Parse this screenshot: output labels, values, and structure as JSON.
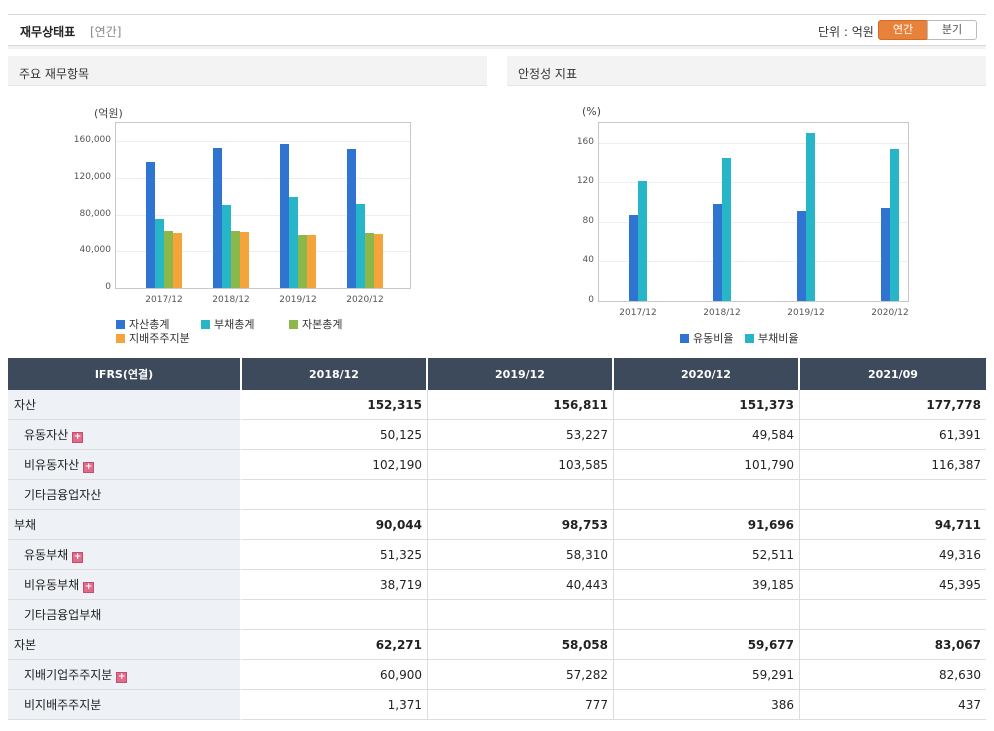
{
  "header": {
    "title": "재무상태표",
    "subtitle": "[연간]",
    "unit_label": "단위 : 억원",
    "period_options": [
      {
        "label": "연간",
        "active": true
      },
      {
        "label": "분기",
        "active": false
      }
    ]
  },
  "colors": {
    "asset": "#2f74d0",
    "liability": "#27b6c8",
    "equity": "#8cb84b",
    "controlling": "#f4a43a",
    "accent": "#e8823a",
    "table_header": "#3d4a5c"
  },
  "left_panel": {
    "title": "주요 재무항목",
    "unit": "(억원)"
  },
  "right_panel": {
    "title": "안정성 지표",
    "unit": "(%)"
  },
  "chart_data": [
    {
      "type": "bar",
      "title": "주요 재무항목",
      "ylabel": "(억원)",
      "categories": [
        "2017/12",
        "2018/12",
        "2019/12",
        "2020/12"
      ],
      "ylim": [
        0,
        180000
      ],
      "yticks": [
        0,
        40000,
        80000,
        120000,
        160000
      ],
      "ytick_labels": [
        "0",
        "40,000",
        "80,000",
        "120,000",
        "160,000"
      ],
      "legend": "bottom",
      "series": [
        {
          "name": "자산총계",
          "color": "#2f74d0",
          "values": [
            137000,
            152315,
            156811,
            151373
          ]
        },
        {
          "name": "부채총계",
          "color": "#27b6c8",
          "values": [
            75000,
            90044,
            98753,
            91696
          ]
        },
        {
          "name": "자본총계",
          "color": "#8cb84b",
          "values": [
            62000,
            62271,
            58058,
            59677
          ]
        },
        {
          "name": "지배주주지분",
          "color": "#f4a43a",
          "values": [
            60500,
            60900,
            57282,
            59291
          ]
        }
      ]
    },
    {
      "type": "bar",
      "title": "안정성 지표",
      "ylabel": "(%)",
      "categories": [
        "2017/12",
        "2018/12",
        "2019/12",
        "2020/12"
      ],
      "ylim": [
        0,
        180
      ],
      "yticks": [
        0,
        40,
        80,
        120,
        160
      ],
      "ytick_labels": [
        "0",
        "40",
        "80",
        "120",
        "160"
      ],
      "legend": "bottom",
      "series": [
        {
          "name": "유동비율",
          "color": "#2f74d0",
          "values": [
            87,
            97.7,
            91.3,
            94.4
          ]
        },
        {
          "name": "부채비율",
          "color": "#27b6c8",
          "values": [
            121,
            144.6,
            170.1,
            153.7
          ]
        }
      ]
    }
  ],
  "table": {
    "header_label": "IFRS(연결)",
    "columns": [
      "2018/12",
      "2019/12",
      "2020/12",
      "2021/09"
    ],
    "rows": [
      {
        "label": "자산",
        "level": "main",
        "expand": false,
        "values": [
          "152,315",
          "156,811",
          "151,373",
          "177,778"
        ]
      },
      {
        "label": "유동자산",
        "level": "sub",
        "expand": true,
        "values": [
          "50,125",
          "53,227",
          "49,584",
          "61,391"
        ]
      },
      {
        "label": "비유동자산",
        "level": "sub",
        "expand": true,
        "values": [
          "102,190",
          "103,585",
          "101,790",
          "116,387"
        ]
      },
      {
        "label": "기타금융업자산",
        "level": "sub",
        "expand": false,
        "values": [
          "",
          "",
          "",
          ""
        ]
      },
      {
        "label": "부채",
        "level": "main",
        "expand": false,
        "values": [
          "90,044",
          "98,753",
          "91,696",
          "94,711"
        ]
      },
      {
        "label": "유동부채",
        "level": "sub",
        "expand": true,
        "values": [
          "51,325",
          "58,310",
          "52,511",
          "49,316"
        ]
      },
      {
        "label": "비유동부채",
        "level": "sub",
        "expand": true,
        "values": [
          "38,719",
          "40,443",
          "39,185",
          "45,395"
        ]
      },
      {
        "label": "기타금융업부채",
        "level": "sub",
        "expand": false,
        "values": [
          "",
          "",
          "",
          ""
        ]
      },
      {
        "label": "자본",
        "level": "main",
        "expand": false,
        "values": [
          "62,271",
          "58,058",
          "59,677",
          "83,067"
        ]
      },
      {
        "label": "지배기업주주지분",
        "level": "sub",
        "expand": true,
        "values": [
          "60,900",
          "57,282",
          "59,291",
          "82,630"
        ]
      },
      {
        "label": "비지배주주지분",
        "level": "sub",
        "expand": false,
        "values": [
          "1,371",
          "777",
          "386",
          "437"
        ]
      }
    ],
    "expand_symbol": "+"
  }
}
